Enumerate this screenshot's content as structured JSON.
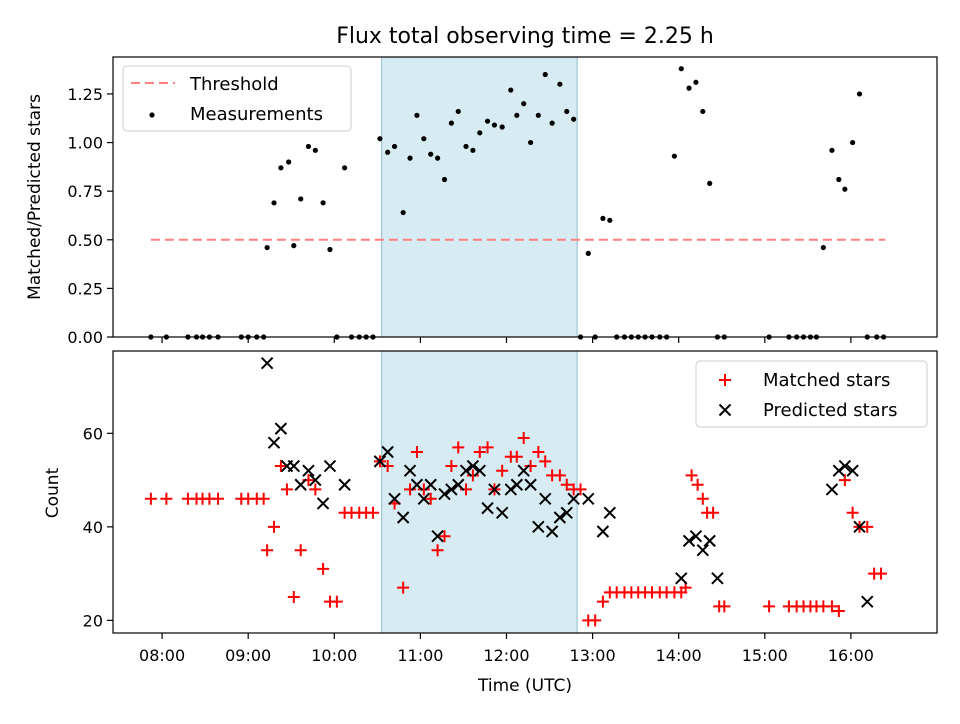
{
  "title": "Flux total observing time = 2.25 h",
  "colors": {
    "threshold": "#ff7f7f",
    "measurement": "#000000",
    "matched": "#ff0000",
    "predicted": "#000000",
    "highlight": "#add8e6"
  },
  "chart_data": [
    {
      "type": "scatter",
      "panel": "top",
      "title": "Flux total observing time = 2.25 h",
      "xlabel": "",
      "ylabel": "Matched/Predicted stars",
      "xlim": [
        7.43,
        17.0
      ],
      "ylim": [
        0,
        1.44
      ],
      "yticks": [
        0,
        0.25,
        0.5,
        0.75,
        1.0,
        1.25
      ],
      "ytick_labels": [
        "0.00",
        "0.25",
        "0.50",
        "0.75",
        "1.00",
        "1.25"
      ],
      "xticks": [
        8,
        9,
        10,
        11,
        12,
        13,
        14,
        15,
        16
      ],
      "highlight_span": [
        10.55,
        12.82
      ],
      "legend": {
        "placement": "top-left",
        "entries": [
          "Threshold",
          "Measurements"
        ]
      },
      "threshold": {
        "name": "Threshold",
        "y": 0.5,
        "x_range": [
          7.87,
          16.4
        ]
      },
      "measurements": {
        "name": "Measurements",
        "x": [
          7.87,
          8.05,
          8.3,
          8.4,
          8.47,
          8.55,
          8.65,
          8.92,
          9.0,
          9.1,
          9.18,
          9.22,
          9.3,
          9.38,
          9.47,
          9.53,
          9.61,
          9.7,
          9.78,
          9.87,
          9.95,
          10.03,
          10.12,
          10.2,
          10.29,
          10.37,
          10.45,
          10.53,
          10.62,
          10.7,
          10.8,
          10.88,
          10.96,
          11.04,
          11.12,
          11.2,
          11.28,
          11.36,
          11.44,
          11.53,
          11.61,
          11.69,
          11.78,
          11.86,
          11.95,
          12.05,
          12.12,
          12.2,
          12.28,
          12.37,
          12.45,
          12.53,
          12.62,
          12.7,
          12.78,
          12.86,
          12.95,
          13.03,
          13.12,
          13.2,
          13.28,
          13.37,
          13.45,
          13.53,
          13.61,
          13.69,
          13.78,
          13.86,
          13.95,
          14.03,
          14.12,
          14.2,
          14.28,
          14.36,
          14.45,
          14.53,
          15.05,
          15.28,
          15.37,
          15.45,
          15.53,
          15.6,
          15.68,
          15.78,
          15.86,
          15.93,
          16.02,
          16.1,
          16.19,
          16.3,
          16.38
        ],
        "y": [
          0,
          0,
          0,
          0,
          0,
          0,
          0,
          0,
          0,
          0,
          0,
          0.46,
          0.69,
          0.87,
          0.9,
          0.47,
          0.71,
          0.98,
          0.96,
          0.69,
          0.45,
          0,
          0.87,
          0,
          0,
          0,
          0,
          1.02,
          0.95,
          0.98,
          0.64,
          0.92,
          1.14,
          1.02,
          0.94,
          0.92,
          0.81,
          1.1,
          1.16,
          0.98,
          0.96,
          1.05,
          1.11,
          1.09,
          1.08,
          1.27,
          1.14,
          1.2,
          1.0,
          1.14,
          1.35,
          1.1,
          1.3,
          1.16,
          1.12,
          0,
          0.43,
          0,
          0.61,
          0.6,
          0,
          0,
          0,
          0,
          0,
          0,
          0,
          0,
          0.93,
          1.38,
          1.28,
          1.31,
          1.16,
          0.79,
          0,
          0,
          0,
          0,
          0,
          0,
          0,
          0,
          0.46,
          0.96,
          0.81,
          0.76,
          1.0,
          1.25,
          0,
          0,
          0
        ]
      }
    },
    {
      "type": "scatter",
      "panel": "bottom",
      "title": "",
      "xlabel": "Time (UTC)",
      "ylabel": "Count",
      "xlim": [
        7.43,
        17.0
      ],
      "ylim": [
        17.3,
        77.6
      ],
      "yticks": [
        20,
        40,
        60
      ],
      "ytick_labels": [
        "20",
        "40",
        "60"
      ],
      "xticks": [
        8,
        9,
        10,
        11,
        12,
        13,
        14,
        15,
        16
      ],
      "xtick_labels": [
        "08:00",
        "09:00",
        "10:00",
        "11:00",
        "12:00",
        "13:00",
        "14:00",
        "15:00",
        "16:00"
      ],
      "highlight_span": [
        10.55,
        12.82
      ],
      "legend": {
        "placement": "top-right",
        "entries": [
          "Matched stars",
          "Predicted stars"
        ]
      },
      "series": [
        {
          "name": "Matched stars",
          "marker": "plus",
          "x": [
            7.87,
            8.05,
            8.3,
            8.4,
            8.47,
            8.55,
            8.65,
            8.92,
            9.0,
            9.1,
            9.18,
            9.22,
            9.3,
            9.38,
            9.45,
            9.53,
            9.61,
            9.7,
            9.78,
            9.87,
            9.95,
            10.03,
            10.12,
            10.2,
            10.29,
            10.37,
            10.45,
            10.53,
            10.62,
            10.7,
            10.8,
            10.88,
            10.96,
            11.04,
            11.12,
            11.2,
            11.28,
            11.36,
            11.44,
            11.53,
            11.61,
            11.69,
            11.78,
            11.86,
            11.95,
            12.05,
            12.12,
            12.2,
            12.28,
            12.37,
            12.45,
            12.53,
            12.62,
            12.7,
            12.78,
            12.86,
            12.95,
            13.03,
            13.12,
            13.2,
            13.28,
            13.37,
            13.45,
            13.53,
            13.61,
            13.69,
            13.78,
            13.86,
            13.95,
            14.03,
            14.08,
            14.15,
            14.22,
            14.28,
            14.33,
            14.4,
            14.47,
            14.53,
            15.05,
            15.28,
            15.37,
            15.45,
            15.53,
            15.6,
            15.68,
            15.78,
            15.86,
            15.93,
            16.02,
            16.1,
            16.19,
            16.27,
            16.35
          ],
          "y": [
            46,
            46,
            46,
            46,
            46,
            46,
            46,
            46,
            46,
            46,
            46,
            35,
            40,
            53,
            48,
            25,
            35,
            50,
            48,
            31,
            24,
            24,
            43,
            43,
            43,
            43,
            43,
            54,
            53,
            45,
            27,
            48,
            56,
            48,
            46,
            35,
            38,
            53,
            57,
            48,
            51,
            56,
            57,
            48,
            52,
            55,
            55,
            59,
            53,
            56,
            54,
            51,
            51,
            49,
            48,
            48,
            20,
            20,
            24,
            26,
            26,
            26,
            26,
            26,
            26,
            26,
            26,
            26,
            26,
            26,
            27,
            51,
            49,
            46,
            43,
            43,
            23,
            23,
            23,
            23,
            23,
            23,
            23,
            23,
            23,
            23,
            22,
            50,
            43,
            40,
            40,
            30,
            30
          ]
        },
        {
          "name": "Predicted stars",
          "marker": "x",
          "x": [
            9.22,
            9.3,
            9.38,
            9.45,
            9.53,
            9.61,
            9.7,
            9.78,
            9.87,
            9.95,
            10.12,
            10.53,
            10.62,
            10.7,
            10.8,
            10.88,
            10.96,
            11.04,
            11.12,
            11.2,
            11.28,
            11.36,
            11.44,
            11.53,
            11.61,
            11.69,
            11.78,
            11.86,
            11.95,
            12.05,
            12.12,
            12.2,
            12.28,
            12.37,
            12.45,
            12.53,
            12.62,
            12.7,
            12.78,
            12.95,
            13.12,
            13.2,
            14.03,
            14.12,
            14.2,
            14.28,
            14.36,
            14.45,
            15.78,
            15.86,
            15.93,
            16.02,
            16.1,
            16.19
          ],
          "y": [
            75,
            58,
            61,
            53,
            53,
            49,
            52,
            50,
            45,
            53,
            49,
            54,
            56,
            46,
            42,
            52,
            49,
            46,
            49,
            38,
            47,
            48,
            49,
            52,
            53,
            52,
            44,
            48,
            43,
            48,
            49,
            52,
            49,
            40,
            46,
            39,
            42,
            43,
            46,
            46,
            39,
            43,
            29,
            37,
            38,
            35,
            37,
            29,
            48,
            52,
            53,
            52,
            40,
            24
          ]
        }
      ]
    }
  ]
}
